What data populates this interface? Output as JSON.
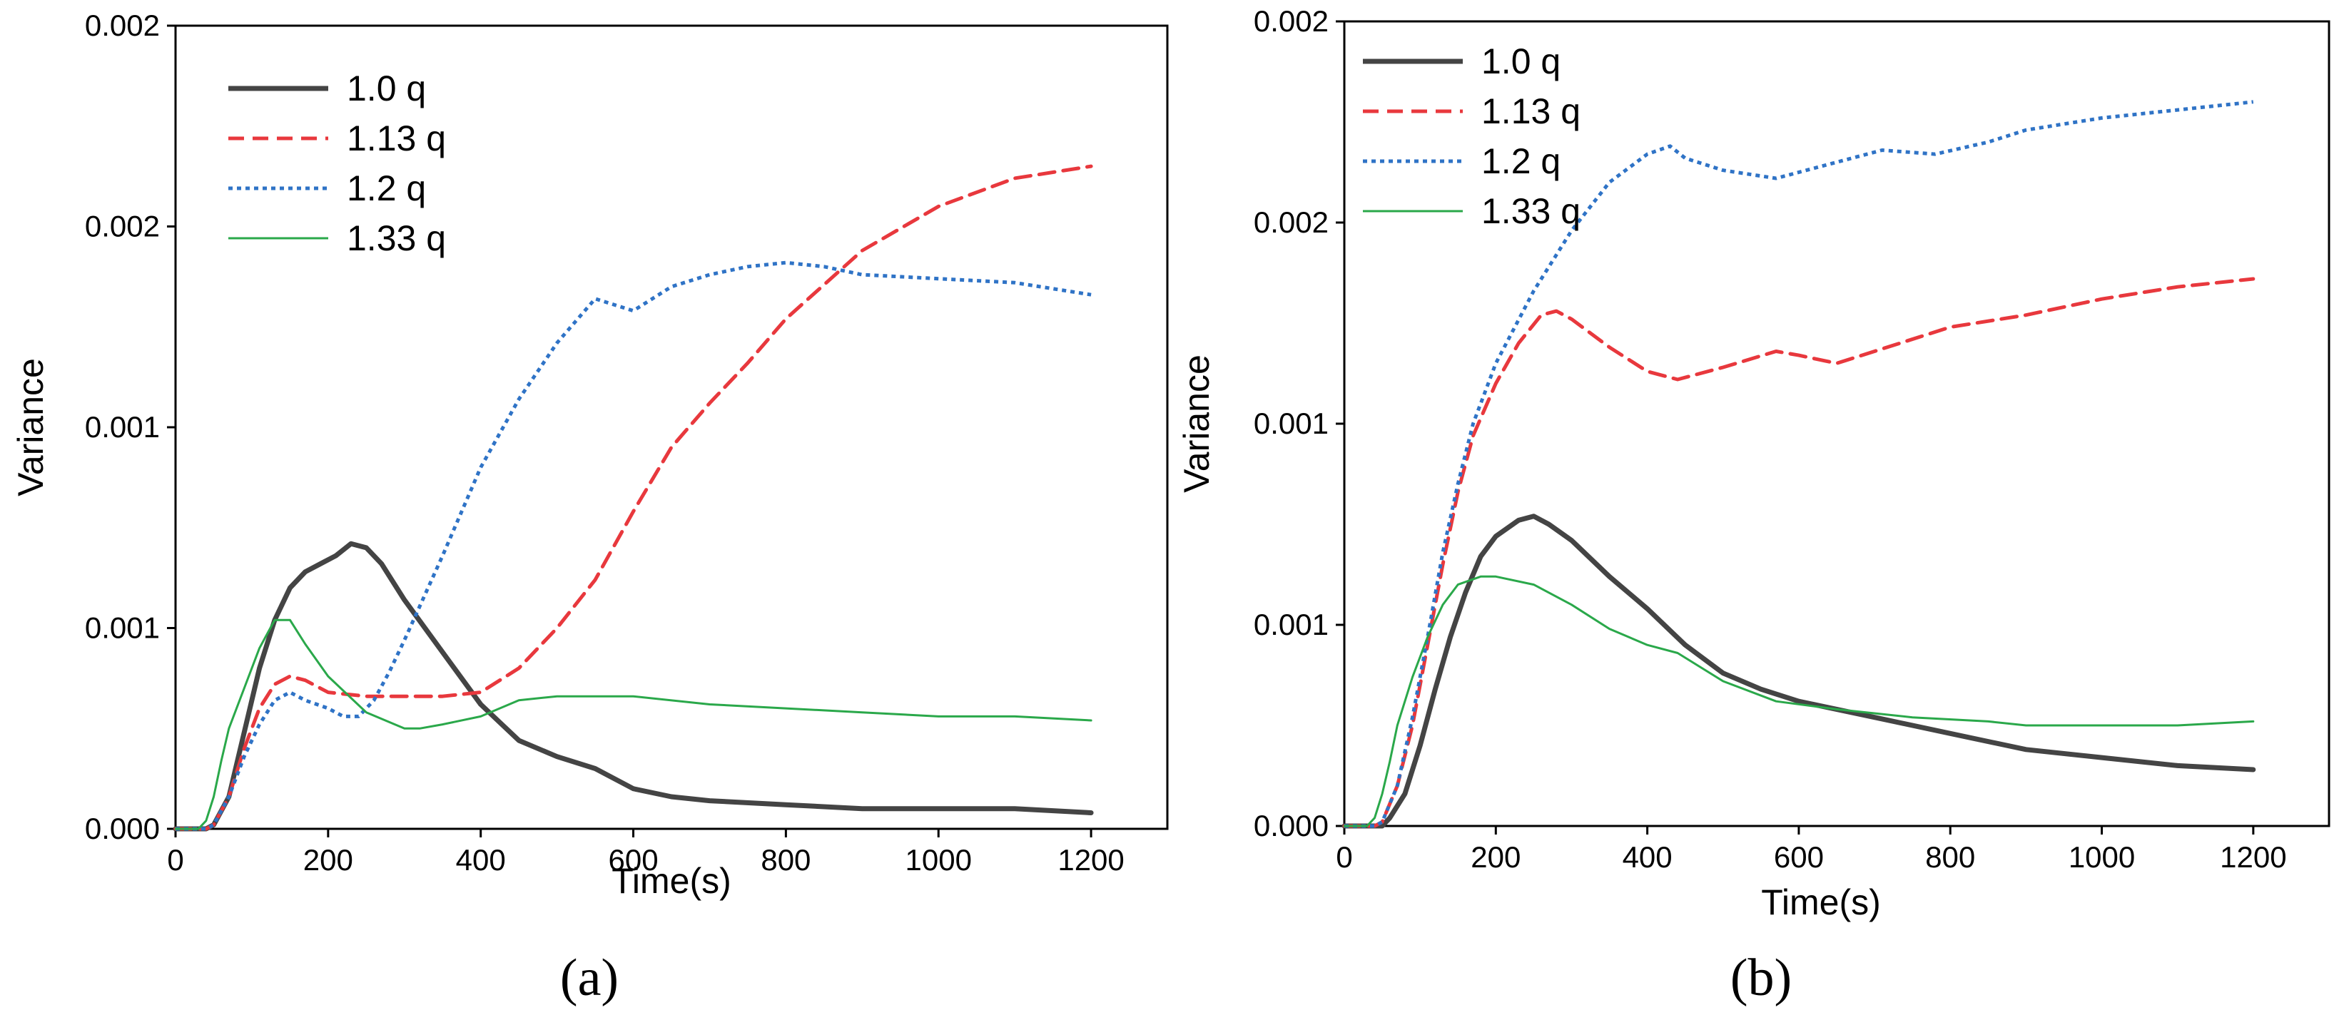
{
  "chart_data": [
    {
      "type": "line",
      "caption": "(a)",
      "xlabel": "Time(s)",
      "ylabel": "Variance",
      "xlim": [
        0,
        1300
      ],
      "ylim": [
        0,
        0.002
      ],
      "xticks": [
        0,
        200,
        400,
        600,
        800,
        1000,
        1200
      ],
      "yticks": [
        0,
        0.0005,
        0.001,
        0.0015,
        0.002
      ],
      "ytick_labels": [
        "0.000",
        "0.001",
        "0.001",
        "0.002",
        "0.002"
      ],
      "legend_position": "top-left",
      "series": [
        {
          "name": "1.0 q",
          "color": "#444444",
          "dash": "solid",
          "width": 7,
          "x": [
            0,
            40,
            50,
            70,
            90,
            110,
            130,
            150,
            170,
            190,
            210,
            230,
            250,
            270,
            300,
            350,
            400,
            450,
            500,
            550,
            600,
            650,
            700,
            800,
            900,
            1000,
            1100,
            1200
          ],
          "y": [
            0,
            0,
            1e-05,
            8e-05,
            0.00024,
            0.0004,
            0.00052,
            0.0006,
            0.00064,
            0.00066,
            0.00068,
            0.00071,
            0.0007,
            0.00066,
            0.00057,
            0.00044,
            0.00031,
            0.00022,
            0.00018,
            0.00015,
            0.0001,
            8e-05,
            7e-05,
            6e-05,
            5e-05,
            5e-05,
            5e-05,
            4e-05
          ]
        },
        {
          "name": "1.13 q",
          "color": "#e8383d",
          "dash": "dashed",
          "width": 5,
          "x": [
            0,
            40,
            50,
            70,
            90,
            110,
            130,
            150,
            170,
            200,
            250,
            300,
            350,
            400,
            450,
            500,
            550,
            600,
            650,
            700,
            750,
            800,
            900,
            1000,
            1100,
            1200
          ],
          "y": [
            0,
            0,
            1e-05,
            8e-05,
            0.0002,
            0.0003,
            0.00036,
            0.00038,
            0.00037,
            0.00034,
            0.00033,
            0.00033,
            0.00033,
            0.00034,
            0.0004,
            0.0005,
            0.00062,
            0.00079,
            0.00095,
            0.00106,
            0.00116,
            0.00127,
            0.00144,
            0.00155,
            0.00162,
            0.00165
          ]
        },
        {
          "name": "1.2 q",
          "color": "#2f73c6",
          "dash": "dotted",
          "width": 5,
          "x": [
            0,
            40,
            50,
            70,
            90,
            110,
            130,
            150,
            170,
            200,
            220,
            240,
            260,
            280,
            300,
            350,
            400,
            450,
            500,
            550,
            600,
            650,
            700,
            750,
            800,
            850,
            900,
            1000,
            1100,
            1200
          ],
          "y": [
            0,
            0,
            1e-05,
            8e-05,
            0.00018,
            0.00026,
            0.00032,
            0.00034,
            0.00032,
            0.0003,
            0.00028,
            0.00028,
            0.00032,
            0.00039,
            0.00047,
            0.00068,
            0.0009,
            0.00107,
            0.00121,
            0.00132,
            0.00129,
            0.00135,
            0.00138,
            0.0014,
            0.00141,
            0.0014,
            0.00138,
            0.00137,
            0.00136,
            0.00133
          ]
        },
        {
          "name": "1.33 q",
          "color": "#2aa84a",
          "dash": "solid",
          "width": 3,
          "x": [
            0,
            30,
            40,
            50,
            60,
            70,
            90,
            110,
            130,
            150,
            170,
            200,
            250,
            300,
            320,
            350,
            400,
            450,
            500,
            550,
            600,
            700,
            800,
            900,
            1000,
            1100,
            1200
          ],
          "y": [
            0,
            0,
            2e-05,
            8e-05,
            0.00017,
            0.00025,
            0.00035,
            0.00045,
            0.00052,
            0.00052,
            0.00046,
            0.00038,
            0.00029,
            0.00025,
            0.00025,
            0.00026,
            0.00028,
            0.00032,
            0.00033,
            0.00033,
            0.00033,
            0.00031,
            0.0003,
            0.00029,
            0.00028,
            0.00028,
            0.00027
          ]
        }
      ]
    },
    {
      "type": "line",
      "caption": "(b)",
      "xlabel": "Time(s)",
      "ylabel": "Variance",
      "xlim": [
        0,
        1300
      ],
      "ylim": [
        0,
        0.002
      ],
      "xticks": [
        0,
        200,
        400,
        600,
        800,
        1000,
        1200
      ],
      "yticks": [
        0,
        0.0005,
        0.001,
        0.0015,
        0.002
      ],
      "ytick_labels": [
        "0.000",
        "0.001",
        "0.001",
        "0.002",
        "0.002"
      ],
      "legend_position": "top-left",
      "series": [
        {
          "name": "1.0 q",
          "color": "#444444",
          "dash": "solid",
          "width": 7,
          "x": [
            0,
            50,
            60,
            80,
            100,
            120,
            140,
            160,
            180,
            200,
            230,
            250,
            270,
            300,
            350,
            400,
            450,
            500,
            550,
            600,
            700,
            800,
            900,
            1000,
            1100,
            1200
          ],
          "y": [
            0,
            0,
            2e-05,
            8e-05,
            0.0002,
            0.00034,
            0.00047,
            0.00058,
            0.00067,
            0.00072,
            0.00076,
            0.00077,
            0.00075,
            0.00071,
            0.00062,
            0.00054,
            0.00045,
            0.00038,
            0.00034,
            0.00031,
            0.00027,
            0.00023,
            0.00019,
            0.00017,
            0.00015,
            0.00014
          ]
        },
        {
          "name": "1.13 q",
          "color": "#e8383d",
          "dash": "dashed",
          "width": 5,
          "x": [
            0,
            40,
            50,
            70,
            90,
            110,
            130,
            150,
            170,
            200,
            230,
            260,
            280,
            300,
            350,
            400,
            440,
            500,
            570,
            600,
            650,
            700,
            800,
            900,
            1000,
            1100,
            1200
          ],
          "y": [
            0,
            0,
            1e-05,
            0.0001,
            0.00025,
            0.00045,
            0.00065,
            0.00083,
            0.00097,
            0.0011,
            0.0012,
            0.00127,
            0.00128,
            0.00126,
            0.00119,
            0.00113,
            0.00111,
            0.00114,
            0.00118,
            0.00117,
            0.00115,
            0.00118,
            0.00124,
            0.00127,
            0.00131,
            0.00134,
            0.00136
          ]
        },
        {
          "name": "1.2 q",
          "color": "#2f73c6",
          "dash": "dotted",
          "width": 5,
          "x": [
            0,
            40,
            50,
            70,
            90,
            110,
            130,
            150,
            170,
            200,
            250,
            300,
            350,
            400,
            430,
            450,
            500,
            570,
            650,
            710,
            780,
            850,
            900,
            1000,
            1100,
            1200
          ],
          "y": [
            0,
            0,
            1e-05,
            0.0001,
            0.00027,
            0.00047,
            0.00068,
            0.00085,
            0.001,
            0.00115,
            0.00133,
            0.00148,
            0.0016,
            0.00167,
            0.00169,
            0.00166,
            0.00163,
            0.00161,
            0.00165,
            0.00168,
            0.00167,
            0.0017,
            0.00173,
            0.00176,
            0.00178,
            0.0018
          ]
        },
        {
          "name": "1.33 q",
          "color": "#2aa84a",
          "dash": "solid",
          "width": 3,
          "x": [
            0,
            30,
            40,
            50,
            60,
            70,
            90,
            110,
            130,
            150,
            180,
            200,
            250,
            300,
            350,
            400,
            440,
            500,
            570,
            650,
            750,
            850,
            900,
            1000,
            1100,
            1200
          ],
          "y": [
            0,
            0,
            2e-05,
            8e-05,
            0.00016,
            0.00025,
            0.00037,
            0.00047,
            0.00055,
            0.0006,
            0.00062,
            0.00062,
            0.0006,
            0.00055,
            0.00049,
            0.00045,
            0.00043,
            0.00036,
            0.00031,
            0.00029,
            0.00027,
            0.00026,
            0.00025,
            0.00025,
            0.00025,
            0.00026
          ]
        }
      ]
    }
  ]
}
